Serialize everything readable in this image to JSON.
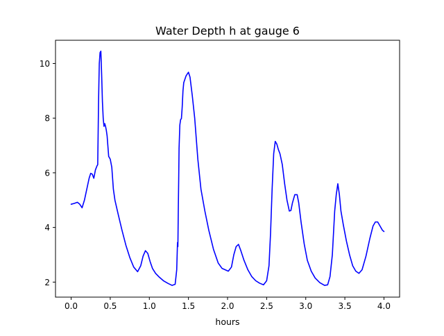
{
  "chart_data": {
    "type": "line",
    "title": "Water Depth h at gauge 6",
    "xlabel": "hours",
    "ylabel": "",
    "xlim": [
      -0.2,
      4.2
    ],
    "ylim": [
      1.45,
      10.85
    ],
    "xticks": [
      0.0,
      0.5,
      1.0,
      1.5,
      2.0,
      2.5,
      3.0,
      3.5,
      4.0
    ],
    "xtick_labels": [
      "0.0",
      "0.5",
      "1.0",
      "1.5",
      "2.0",
      "2.5",
      "3.0",
      "3.5",
      "4.0"
    ],
    "yticks": [
      2,
      4,
      6,
      8,
      10
    ],
    "ytick_labels": [
      "2",
      "4",
      "6",
      "8",
      "10"
    ],
    "grid": false,
    "legend": "none",
    "series": [
      {
        "color": "#0000ff",
        "x": [
          0.0,
          0.04,
          0.08,
          0.11,
          0.14,
          0.17,
          0.2,
          0.23,
          0.25,
          0.27,
          0.29,
          0.31,
          0.33,
          0.34,
          0.35,
          0.355,
          0.36,
          0.37,
          0.38,
          0.39,
          0.4,
          0.41,
          0.42,
          0.43,
          0.44,
          0.45,
          0.46,
          0.48,
          0.5,
          0.52,
          0.54,
          0.56,
          0.6,
          0.65,
          0.7,
          0.75,
          0.8,
          0.85,
          0.89,
          0.92,
          0.95,
          0.98,
          1.01,
          1.04,
          1.08,
          1.12,
          1.18,
          1.24,
          1.29,
          1.33,
          1.35,
          1.36,
          1.365,
          1.37,
          1.375,
          1.38,
          1.39,
          1.4,
          1.41,
          1.42,
          1.43,
          1.44,
          1.47,
          1.5,
          1.52,
          1.55,
          1.58,
          1.62,
          1.66,
          1.71,
          1.76,
          1.82,
          1.88,
          1.93,
          1.97,
          2.01,
          2.05,
          2.08,
          2.11,
          2.14,
          2.17,
          2.21,
          2.26,
          2.31,
          2.36,
          2.41,
          2.46,
          2.5,
          2.53,
          2.55,
          2.57,
          2.59,
          2.61,
          2.63,
          2.65,
          2.67,
          2.7,
          2.73,
          2.76,
          2.79,
          2.81,
          2.83,
          2.86,
          2.89,
          2.91,
          2.94,
          2.98,
          3.02,
          3.07,
          3.12,
          3.18,
          3.24,
          3.28,
          3.31,
          3.34,
          3.37,
          3.39,
          3.41,
          3.43,
          3.45,
          3.48,
          3.52,
          3.56,
          3.6,
          3.64,
          3.68,
          3.72,
          3.77,
          3.82,
          3.86,
          3.89,
          3.92,
          3.95,
          3.98,
          4.0
        ],
        "y": [
          4.85,
          4.88,
          4.92,
          4.85,
          4.72,
          5.0,
          5.4,
          5.8,
          5.98,
          5.95,
          5.8,
          6.1,
          6.25,
          6.3,
          8.5,
          9.3,
          10.0,
          10.4,
          10.45,
          9.6,
          8.6,
          8.0,
          7.7,
          7.8,
          7.7,
          7.55,
          7.35,
          6.6,
          6.5,
          6.2,
          5.4,
          5.0,
          4.5,
          3.9,
          3.35,
          2.9,
          2.55,
          2.38,
          2.6,
          2.95,
          3.15,
          3.05,
          2.75,
          2.5,
          2.32,
          2.2,
          2.05,
          1.95,
          1.88,
          1.92,
          2.45,
          3.45,
          3.3,
          4.6,
          5.7,
          6.9,
          7.75,
          7.95,
          7.98,
          8.4,
          9.0,
          9.3,
          9.55,
          9.68,
          9.5,
          8.8,
          8.0,
          6.5,
          5.4,
          4.6,
          3.9,
          3.2,
          2.7,
          2.5,
          2.45,
          2.4,
          2.55,
          3.0,
          3.3,
          3.38,
          3.15,
          2.8,
          2.45,
          2.2,
          2.05,
          1.96,
          1.9,
          2.05,
          2.6,
          3.8,
          5.4,
          6.7,
          7.15,
          7.05,
          6.85,
          6.7,
          6.3,
          5.6,
          5.0,
          4.6,
          4.62,
          4.9,
          5.2,
          5.2,
          4.9,
          4.2,
          3.4,
          2.8,
          2.4,
          2.15,
          1.98,
          1.88,
          1.9,
          2.2,
          3.0,
          4.6,
          5.2,
          5.6,
          5.2,
          4.6,
          4.1,
          3.5,
          3.0,
          2.6,
          2.4,
          2.32,
          2.45,
          2.95,
          3.6,
          4.05,
          4.2,
          4.2,
          4.05,
          3.9,
          3.85
        ]
      }
    ]
  }
}
